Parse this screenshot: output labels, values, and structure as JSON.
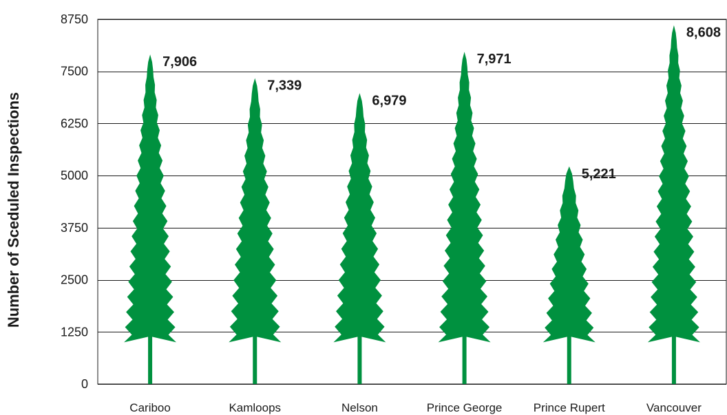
{
  "chart_data": {
    "type": "bar",
    "categories": [
      "Cariboo",
      "Kamloops",
      "Nelson",
      "Prince George",
      "Prince Rupert",
      "Vancouver"
    ],
    "values": [
      7906,
      7339,
      6979,
      7971,
      5221,
      8608
    ],
    "value_labels": [
      "7,906",
      "7,339",
      "6,979",
      "7,971",
      "5,221",
      "8,608"
    ],
    "title": "",
    "xlabel": "",
    "ylabel": "Number of Sceduled Inspections",
    "ylim": [
      0,
      8750
    ],
    "yticks": [
      0,
      1250,
      2500,
      3750,
      5000,
      6250,
      7500,
      8750
    ],
    "grid": true,
    "bar_color": "#00913f",
    "mark_shape": "tree"
  }
}
